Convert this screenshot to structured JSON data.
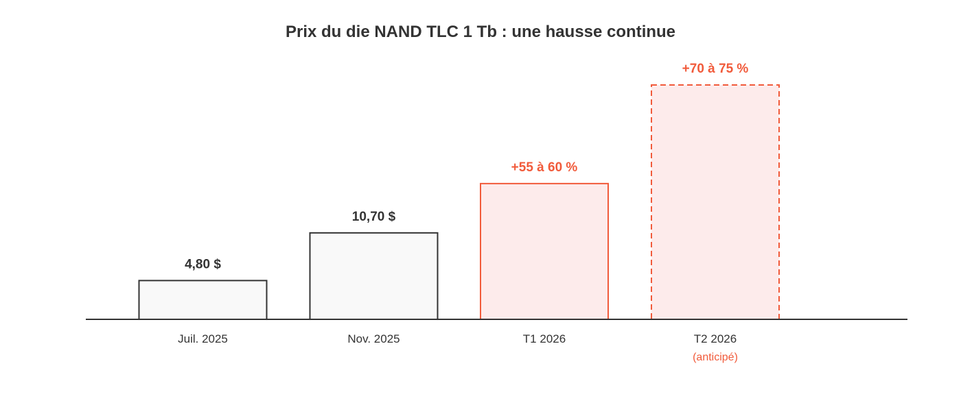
{
  "chart_data": {
    "type": "bar",
    "title": "Prix du die NAND TLC 1 Tb : une hausse continue",
    "xlabel": "",
    "ylabel": "",
    "unit": "$",
    "categories": [
      "Juil. 2025",
      "Nov. 2025",
      "T1 2026",
      "T2 2026"
    ],
    "category_notes": [
      "",
      "",
      "",
      "(anticipé)"
    ],
    "values": [
      4.8,
      10.7,
      16.8,
      29.0
    ],
    "data_labels": [
      "4,80 $",
      "10,70 $",
      "+55 à 60 %",
      "+70 à 75 %"
    ],
    "styles": [
      "historical",
      "historical",
      "highlight",
      "forecast"
    ],
    "ylim": [
      0,
      29.0
    ],
    "grid": false,
    "legend": "none"
  },
  "colors": {
    "text": "#333333",
    "accent": "#f15a3a",
    "historical_fill": "#f9f9f9",
    "highlight_fill": "#fdebeb",
    "axis": "#333333"
  }
}
